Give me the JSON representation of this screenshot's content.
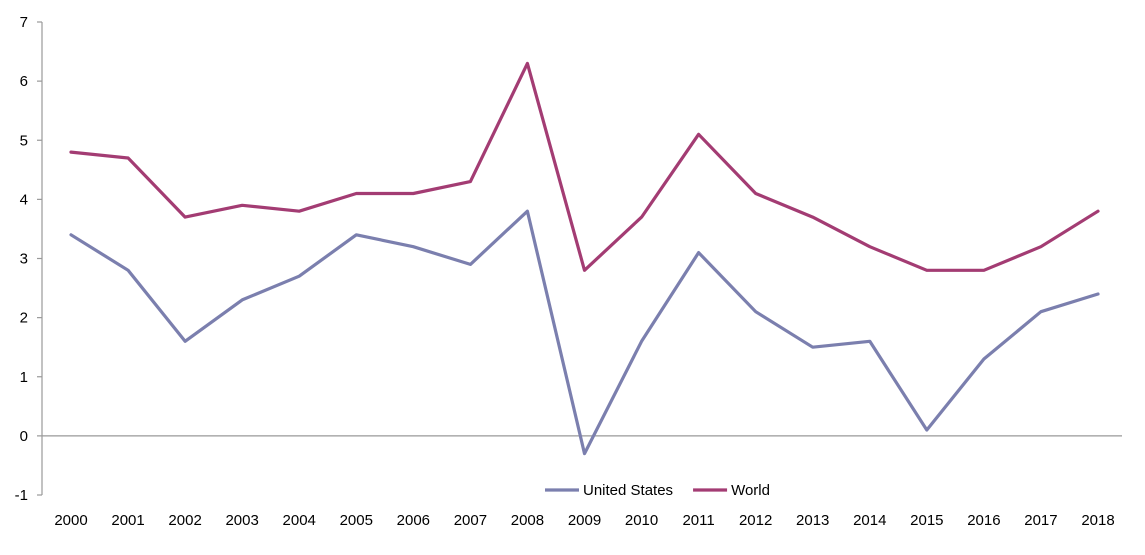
{
  "chart_data": {
    "type": "line",
    "title": "",
    "xlabel": "",
    "ylabel": "",
    "categories": [
      "2000",
      "2001",
      "2002",
      "2003",
      "2004",
      "2005",
      "2006",
      "2007",
      "2008",
      "2009",
      "2010",
      "2011",
      "2012",
      "2013",
      "2014",
      "2015",
      "2016",
      "2017",
      "2018"
    ],
    "ylim": [
      -1,
      7
    ],
    "yticks": [
      -1,
      0,
      1,
      2,
      3,
      4,
      5,
      6,
      7
    ],
    "grid": false,
    "legend_position": "bottom",
    "series": [
      {
        "name": "United States",
        "color": "#7B7FAE",
        "values": [
          3.4,
          2.8,
          1.6,
          2.3,
          2.7,
          3.4,
          3.2,
          2.9,
          3.8,
          -0.3,
          1.6,
          3.1,
          2.1,
          1.5,
          1.6,
          0.1,
          1.3,
          2.1,
          2.4
        ]
      },
      {
        "name": "World",
        "color": "#A33C73",
        "values": [
          4.8,
          4.7,
          3.7,
          3.9,
          3.8,
          4.1,
          4.1,
          4.3,
          6.3,
          2.8,
          3.7,
          5.1,
          4.1,
          3.7,
          3.2,
          2.8,
          2.8,
          3.2,
          3.8
        ]
      }
    ]
  }
}
